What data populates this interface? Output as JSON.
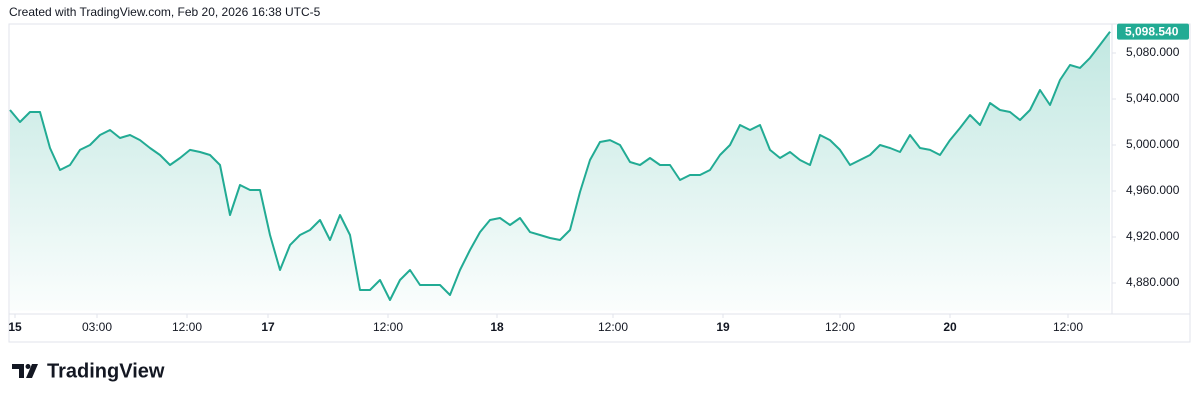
{
  "header": {
    "text": "Created with TradingView.com, Feb 20, 2026 16:38 UTC-5"
  },
  "footer": {
    "brand": "TradingView"
  },
  "chart_data": {
    "type": "area",
    "color": "#22ab94",
    "values": [
      5030.4,
      5020.0,
      5028.7,
      5028.7,
      4997.4,
      4978.3,
      4982.6,
      4995.7,
      5000.0,
      5008.7,
      5013.0,
      5006.1,
      5008.7,
      5004.3,
      4997.4,
      4991.3,
      4982.6,
      4988.7,
      4995.7,
      4993.9,
      4991.3,
      4982.6,
      4939.1,
      4965.2,
      4960.9,
      4960.9,
      4921.7,
      4891.3,
      4913.0,
      4921.7,
      4926.1,
      4934.8,
      4917.4,
      4939.1,
      4921.7,
      4873.9,
      4873.9,
      4882.6,
      4865.2,
      4882.6,
      4891.3,
      4878.3,
      4878.3,
      4878.3,
      4869.6,
      4891.3,
      4908.7,
      4924.3,
      4934.8,
      4936.5,
      4930.4,
      4936.5,
      4924.3,
      4921.7,
      4919.1,
      4917.4,
      4926.1,
      4959.1,
      4987.0,
      5002.6,
      5004.3,
      5000.0,
      4985.2,
      4982.6,
      4988.7,
      4982.6,
      4982.6,
      4969.6,
      4973.9,
      4973.9,
      4978.3,
      4991.3,
      5000.0,
      5017.4,
      5013.0,
      5017.4,
      4995.7,
      4988.7,
      4993.9,
      4987.0,
      4982.6,
      5008.7,
      5004.3,
      4995.7,
      4982.6,
      4987.0,
      4991.3,
      5000.0,
      4997.4,
      4993.9,
      5008.7,
      4997.4,
      4995.7,
      4991.3,
      5004.3,
      5014.8,
      5026.1,
      5017.4,
      5036.5,
      5030.4,
      5028.7,
      5021.7,
      5030.4,
      5047.8,
      5034.8,
      5056.5,
      5069.6,
      5067.0,
      5075.7,
      5087.0,
      5098.54
    ],
    "value_labels": [
      null,
      null,
      null,
      null,
      null,
      null,
      null,
      null,
      null,
      null,
      null,
      null,
      null,
      null,
      null,
      null,
      null,
      null,
      null,
      null,
      null,
      null,
      null,
      null,
      null,
      null,
      null,
      null,
      null,
      null,
      null,
      null,
      null,
      null,
      null,
      null,
      null,
      null,
      null,
      null,
      null,
      null,
      null,
      null,
      null,
      null,
      null,
      null,
      null,
      null,
      null,
      null,
      null,
      null,
      null,
      null,
      null,
      null,
      null,
      null,
      null,
      null,
      null,
      null,
      null,
      null,
      null,
      null,
      null,
      null,
      null,
      null,
      null,
      null,
      null,
      null,
      null,
      null,
      null,
      null,
      null,
      null,
      null,
      null,
      null,
      null,
      null,
      null,
      null,
      null,
      null,
      null,
      null,
      null,
      null,
      null,
      null,
      null,
      null,
      null,
      null,
      null,
      null,
      null,
      null,
      null,
      null,
      null,
      null,
      null,
      "5,098.540"
    ],
    "xlim": [
      0,
      110
    ],
    "xticks": [
      {
        "value": 0.5,
        "label": "15"
      },
      {
        "value": 8.7,
        "label": "03:00"
      },
      {
        "value": 17.7,
        "label": "12:00"
      },
      {
        "value": 25.8,
        "label": "17"
      },
      {
        "value": 37.8,
        "label": "12:00"
      },
      {
        "value": 48.7,
        "label": "18"
      },
      {
        "value": 60.3,
        "label": "12:00"
      },
      {
        "value": 71.3,
        "label": "19"
      },
      {
        "value": 83,
        "label": "12:00"
      },
      {
        "value": 94,
        "label": "20"
      },
      {
        "value": 105.8,
        "label": "12:00"
      }
    ],
    "ylim": [
      4856,
      5104
    ],
    "yticks": [
      {
        "value": 4880,
        "label": "4,880.000"
      },
      {
        "value": 4920,
        "label": "4,920.000"
      },
      {
        "value": 4960,
        "label": "4,960.000"
      },
      {
        "value": 5000,
        "label": "5,000.000"
      },
      {
        "value": 5040,
        "label": "5,040.000"
      },
      {
        "value": 5080,
        "label": "5,080.000"
      }
    ]
  }
}
